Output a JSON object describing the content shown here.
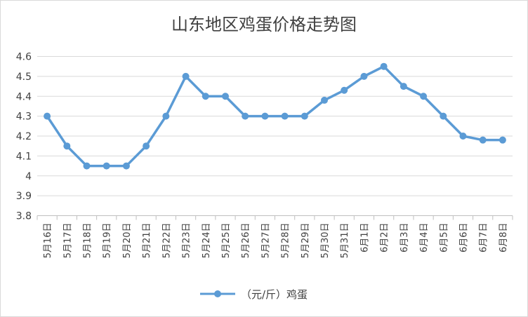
{
  "chart_data": {
    "type": "line",
    "title": "山东地区鸡蛋价格走势图",
    "xlabel": "",
    "ylabel": "",
    "categories": [
      "5月16日",
      "5月17日",
      "5月18日",
      "5月19日",
      "5月20日",
      "5月21日",
      "5月22日",
      "5月23日",
      "5月24日",
      "5月25日",
      "5月26日",
      "5月27日",
      "5月28日",
      "5月29日",
      "5月30日",
      "5月31日",
      "6月1日",
      "6月2日",
      "6月3日",
      "6月4日",
      "6月5日",
      "6月6日",
      "6月7日",
      "6月8日"
    ],
    "series": [
      {
        "name": "（元/斤）鸡蛋",
        "values": [
          4.3,
          4.15,
          4.05,
          4.05,
          4.05,
          4.15,
          4.3,
          4.5,
          4.4,
          4.4,
          4.3,
          4.3,
          4.3,
          4.3,
          4.38,
          4.43,
          4.5,
          4.55,
          4.45,
          4.4,
          4.3,
          4.2,
          4.18,
          4.18
        ]
      }
    ],
    "ylim": [
      3.8,
      4.6
    ],
    "yticks": [
      "3.8",
      "3.9",
      "4",
      "4.1",
      "4.2",
      "4.3",
      "4.4",
      "4.5",
      "4.6"
    ],
    "grid": true,
    "legend_position": "bottom",
    "colors": {
      "series": "#5b9bd5",
      "grid": "#d9d9d9",
      "axis": "#bfbfbf",
      "text": "#404040"
    }
  }
}
